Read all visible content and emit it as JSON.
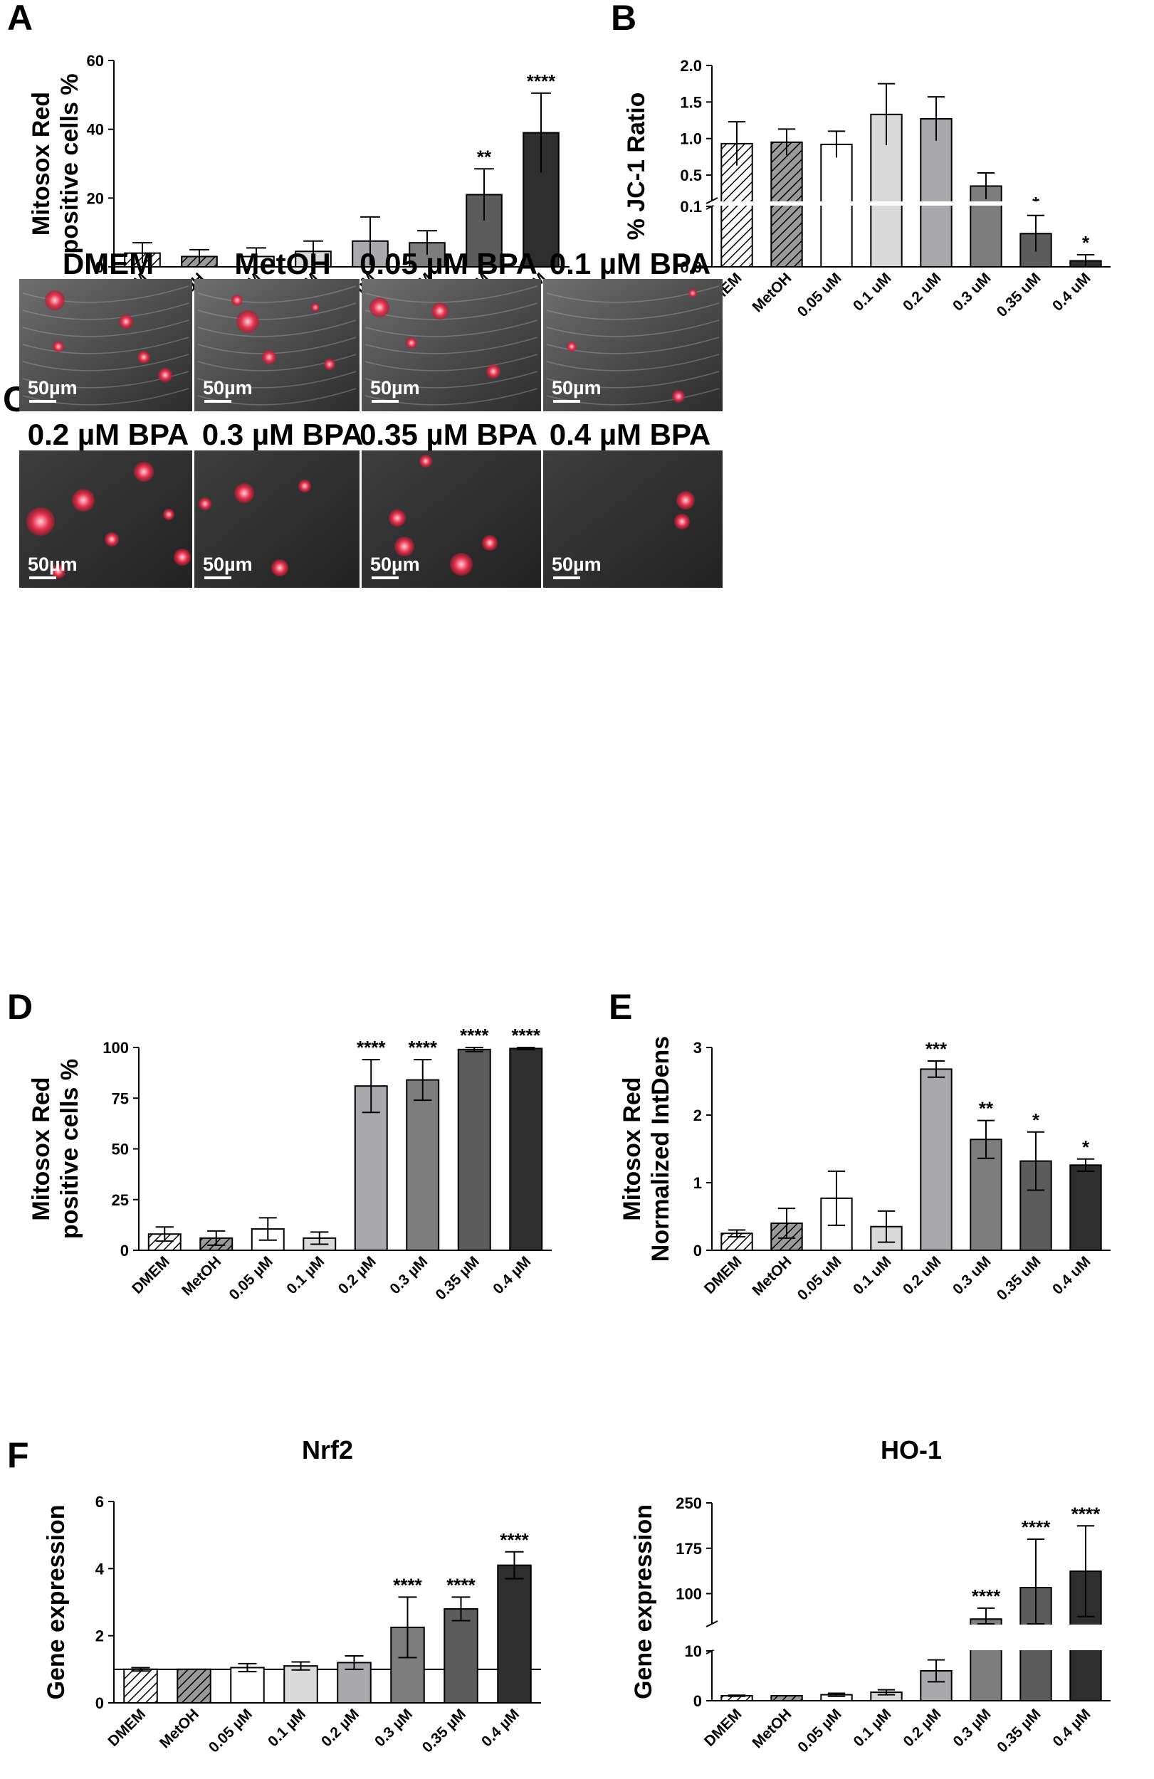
{
  "panels": {
    "A": "A",
    "B": "B",
    "C": "C",
    "D": "D",
    "E": "E",
    "F": "F"
  },
  "colors": {
    "DMEM": "hatch-light",
    "MetOH": "hatch-dark",
    "c005": "#ffffff",
    "c01": "#d9d9d9",
    "c02": "#a8a8ad",
    "c03": "#7d7d7d",
    "c035": "#5c5c5c",
    "c04": "#2e2e2e"
  },
  "microscopy": {
    "panel_label": "C",
    "scale_bar": "50µm",
    "titles": [
      "DMEM",
      "MetOH",
      "0.05 µM BPA",
      "0.1 µM BPA",
      "0.2 µM BPA",
      "0.3 µM BPA",
      "0.35 µM BPA",
      "0.4 µM BPA"
    ]
  },
  "chart_data": [
    {
      "panel": "A",
      "type": "bar",
      "ylabel": "Mitosox Red positive cells %",
      "ylabel_lines": [
        "Mitosox Red",
        "positive cells %"
      ],
      "categories": [
        "DMEM",
        "MetOH",
        "0.05 µM",
        "0.1 µM",
        "0.2 µM",
        "0.3 µM",
        "0.35 µM",
        "0.4 µM"
      ],
      "values": [
        4,
        3,
        3,
        4.5,
        7.5,
        7,
        21,
        39
      ],
      "errors": [
        3,
        2,
        2.5,
        3,
        7,
        3.5,
        7.5,
        11.5
      ],
      "significance": [
        "",
        "",
        "",
        "",
        "",
        "",
        "**",
        "****"
      ],
      "ylim": [
        0,
        60
      ],
      "yticks": [
        0,
        20,
        40,
        60
      ]
    },
    {
      "panel": "B",
      "type": "bar",
      "ylabel": "% JC-1 Ratio",
      "categories": [
        "DMEM",
        "MetOH",
        "0.05 uM",
        "0.1 uM",
        "0.2 uM",
        "0.3 uM",
        "0.35 uM",
        "0.4 uM"
      ],
      "values": [
        0.93,
        0.95,
        0.92,
        1.33,
        1.27,
        0.35,
        0.055,
        0.01
      ],
      "errors": [
        0.3,
        0.18,
        0.18,
        0.42,
        0.3,
        0.18,
        0.03,
        0.01
      ],
      "significance": [
        "",
        "",
        "",
        "",
        "",
        "",
        "*",
        "*"
      ],
      "axis_break": [
        0.1,
        0.15
      ],
      "yticks": [
        "0.0",
        "0.1",
        "0.5",
        "1.0",
        "1.5",
        "2.0"
      ]
    },
    {
      "panel": "D",
      "type": "bar",
      "ylabel": "Mitosox Red positive cells %",
      "ylabel_lines": [
        "Mitosox Red",
        "positive cells %"
      ],
      "categories": [
        "DMEM",
        "MetOH",
        "0.05 µM",
        "0.1 µM",
        "0.2 µM",
        "0.3 µM",
        "0.35 µM",
        "0.4 µM"
      ],
      "values": [
        8,
        6,
        10.5,
        6,
        81,
        84,
        99,
        99.5
      ],
      "errors": [
        3.5,
        3.5,
        5.5,
        3,
        13,
        10,
        1,
        0.5
      ],
      "significance": [
        "",
        "",
        "",
        "",
        "****",
        "****",
        "****",
        "****"
      ],
      "ylim": [
        0,
        100
      ],
      "yticks": [
        0,
        25,
        50,
        75,
        100
      ]
    },
    {
      "panel": "E",
      "type": "bar",
      "ylabel": "Mitosox Red Normalized IntDens",
      "ylabel_lines": [
        "Mitosox Red",
        "Normalized IntDens"
      ],
      "categories": [
        "DMEM",
        "MetOH",
        "0.05 uM",
        "0.1 uM",
        "0.2 uM",
        "0.3 uM",
        "0.35 uM",
        "0.4 uM"
      ],
      "values": [
        0.25,
        0.4,
        0.77,
        0.35,
        2.68,
        1.64,
        1.32,
        1.26
      ],
      "errors": [
        0.05,
        0.22,
        0.4,
        0.23,
        0.12,
        0.28,
        0.43,
        0.09
      ],
      "significance": [
        "",
        "",
        "",
        "",
        "***",
        "**",
        "*",
        "*"
      ],
      "ylim": [
        0,
        3
      ],
      "yticks": [
        0,
        1,
        2,
        3
      ]
    },
    {
      "panel": "F",
      "type": "bar",
      "title": "Nrf2",
      "ylabel": "Gene expression",
      "categories": [
        "DMEM",
        "MetOH",
        "0.05 µM",
        "0.1 µM",
        "0.2 µM",
        "0.3 µM",
        "0.35 µM",
        "0.4 µM"
      ],
      "values": [
        1,
        1,
        1.05,
        1.1,
        1.2,
        2.25,
        2.8,
        4.1
      ],
      "errors": [
        0.05,
        0,
        0.12,
        0.12,
        0.2,
        0.9,
        0.35,
        0.4
      ],
      "significance": [
        "",
        "",
        "",
        "",
        "",
        "****",
        "****",
        "****"
      ],
      "ylim": [
        0,
        6
      ],
      "yticks": [
        0,
        2,
        4,
        6
      ],
      "reference_line": 1
    },
    {
      "panel": "F",
      "type": "bar",
      "title": "HO-1",
      "ylabel": "Gene expression",
      "categories": [
        "DMEM",
        "MetOH",
        "0.05 µM",
        "0.1 µM",
        "0.2 µM",
        "0.3 µM",
        "0.35 µM",
        "0.4 µM"
      ],
      "values": [
        1,
        1,
        1.2,
        1.7,
        6,
        58,
        110,
        137
      ],
      "errors": [
        0.1,
        0,
        0.3,
        0.5,
        2.2,
        18,
        80,
        75
      ],
      "significance": [
        "",
        "",
        "",
        "",
        "***",
        "****",
        "****",
        "****"
      ],
      "axis_break": [
        20,
        50
      ],
      "yticks": [
        0,
        10,
        100,
        175,
        250
      ]
    }
  ]
}
